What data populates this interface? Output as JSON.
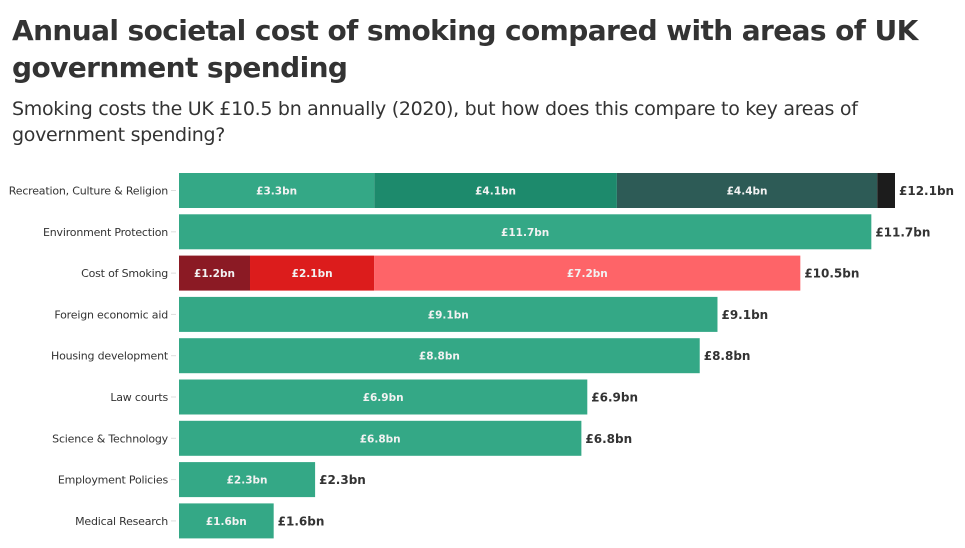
{
  "header": {
    "title": "Annual societal cost of smoking compared with areas of UK government spending",
    "subtitle": "Smoking costs the UK £10.5 bn annually (2020), but how does this compare to key areas of government spending?"
  },
  "chart_data": {
    "type": "bar",
    "orientation": "horizontal",
    "stacked": true,
    "title": "Annual societal cost of smoking compared with areas of UK government spending",
    "subtitle": "Smoking costs the UK £10.5 bn annually (2020), but how does this compare to key areas of government spending?",
    "xlabel": "",
    "ylabel": "",
    "unit": "£bn",
    "xlim": [
      0,
      12.1
    ],
    "grid": false,
    "legend": "none",
    "categories": [
      "Recreation, Culture & Religion",
      "Environment Protection",
      "Cost of Smoking",
      "Foreign economic aid",
      "Housing development",
      "Law courts",
      "Science & Technology",
      "Employment Policies",
      "Medical Research"
    ],
    "bars": [
      {
        "category": "Recreation, Culture & Religion",
        "total": 12.1,
        "total_label": "£12.1bn",
        "segments": [
          {
            "value": 3.3,
            "label": "£3.3bn",
            "color": "#34a886"
          },
          {
            "value": 4.1,
            "label": "£4.1bn",
            "color": "#1d8a6c"
          },
          {
            "value": 4.4,
            "label": "£4.4bn",
            "color": "#2d5b56"
          },
          {
            "value": 0.3,
            "label": "",
            "color": "#1c1c1c"
          }
        ]
      },
      {
        "category": "Environment Protection",
        "total": 11.7,
        "total_label": "£11.7bn",
        "segments": [
          {
            "value": 11.7,
            "label": "£11.7bn",
            "color": "#34a886"
          }
        ]
      },
      {
        "category": "Cost of Smoking",
        "total": 10.5,
        "total_label": "£10.5bn",
        "segments": [
          {
            "value": 1.2,
            "label": "£1.2bn",
            "color": "#8b1a24"
          },
          {
            "value": 2.1,
            "label": "£2.1bn",
            "color": "#dc1c1c"
          },
          {
            "value": 7.2,
            "label": "£7.2bn",
            "color": "#fe6468"
          }
        ]
      },
      {
        "category": "Foreign economic aid",
        "total": 9.1,
        "total_label": "£9.1bn",
        "segments": [
          {
            "value": 9.1,
            "label": "£9.1bn",
            "color": "#34a886"
          }
        ]
      },
      {
        "category": "Housing development",
        "total": 8.8,
        "total_label": "£8.8bn",
        "segments": [
          {
            "value": 8.8,
            "label": "£8.8bn",
            "color": "#34a886"
          }
        ]
      },
      {
        "category": "Law courts",
        "total": 6.9,
        "total_label": "£6.9bn",
        "segments": [
          {
            "value": 6.9,
            "label": "£6.9bn",
            "color": "#34a886"
          }
        ]
      },
      {
        "category": "Science & Technology",
        "total": 6.8,
        "total_label": "£6.8bn",
        "segments": [
          {
            "value": 6.8,
            "label": "£6.8bn",
            "color": "#34a886"
          }
        ]
      },
      {
        "category": "Employment Policies",
        "total": 2.3,
        "total_label": "£2.3bn",
        "segments": [
          {
            "value": 2.3,
            "label": "£2.3bn",
            "color": "#34a886"
          }
        ]
      },
      {
        "category": "Medical Research",
        "total": 1.6,
        "total_label": "£1.6bn",
        "segments": [
          {
            "value": 1.6,
            "label": "£1.6bn",
            "color": "#34a886"
          }
        ]
      }
    ]
  }
}
